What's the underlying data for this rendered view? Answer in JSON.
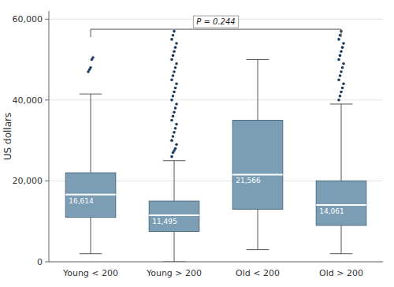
{
  "chart_data": {
    "type": "box",
    "categories": [
      "Young < 200",
      "Young > 200",
      "Old < 200",
      "Old > 200"
    ],
    "boxes": [
      {
        "q1": 11000,
        "median": 16614,
        "q3": 22000,
        "whisker_low": 2000,
        "whisker_high": 41500,
        "outliers": [
          47000,
          47500,
          48000,
          50000,
          50500
        ],
        "median_label": "16,614"
      },
      {
        "q1": 7500,
        "median": 11495,
        "q3": 15000,
        "whisker_low": 0,
        "whisker_high": 25000,
        "outliers": [
          26000,
          27000,
          27500,
          28000,
          29000,
          30000,
          31000,
          32000,
          33000,
          34000,
          35000,
          36000,
          37000,
          38000,
          39000,
          40000,
          41000,
          42000,
          43000,
          44000,
          45000,
          46000,
          47000,
          48000,
          49000,
          50000,
          51000,
          52000,
          53000,
          54000,
          55000,
          56000,
          57000
        ],
        "median_label": "11,495"
      },
      {
        "q1": 13000,
        "median": 21566,
        "q3": 35000,
        "whisker_low": 3000,
        "whisker_high": 50000,
        "outliers": [],
        "median_label": "21,566"
      },
      {
        "q1": 9000,
        "median": 14061,
        "q3": 20000,
        "whisker_low": 2000,
        "whisker_high": 39000,
        "outliers": [
          40000,
          41000,
          42000,
          43000,
          44000,
          45000,
          46000,
          47000,
          48000,
          49000,
          50000,
          51000,
          52000,
          53000,
          54000,
          55000,
          56000,
          57000
        ],
        "median_label": "14,061"
      }
    ],
    "color": "#7b9eb5",
    "ylabel": "US dollars",
    "ylim": [
      0,
      62000
    ],
    "yticks": [
      0,
      {
        "value": 20000,
        "label": "20,000"
      },
      {
        "value": 40000,
        "label": "40,000"
      },
      {
        "value": 60000,
        "label": "60,000"
      }
    ],
    "grid": true,
    "annotations": [
      {
        "text": "P = 0.244",
        "from": "Young < 200",
        "to": "Old > 200",
        "y": 57500
      }
    ]
  }
}
